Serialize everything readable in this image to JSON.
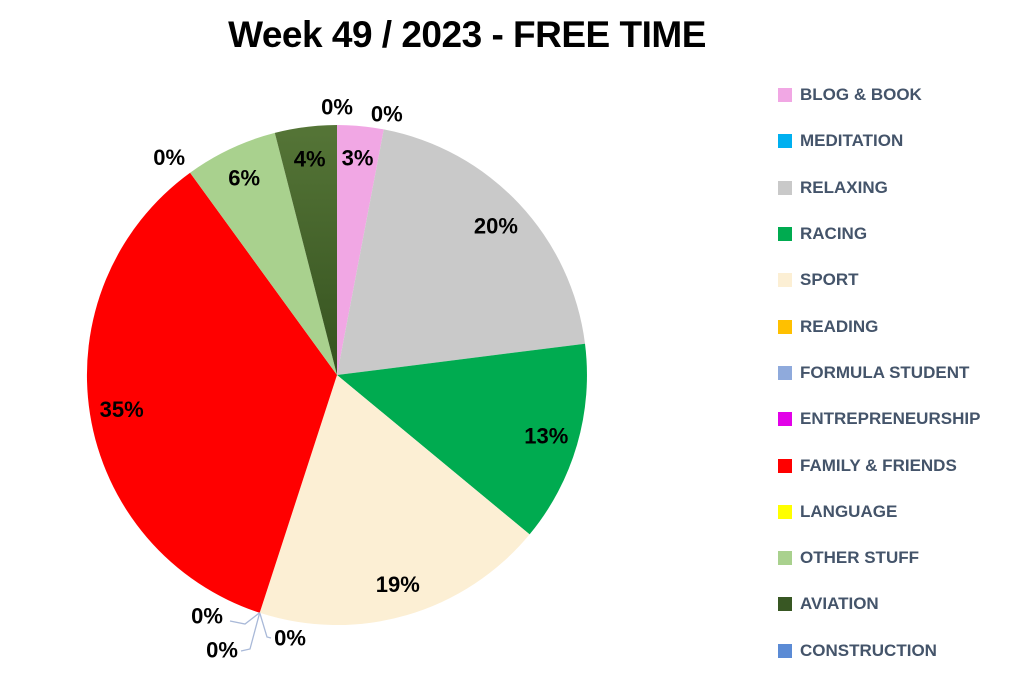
{
  "title": "Week 49 / 2023 - FREE TIME",
  "chart_data": {
    "type": "pie",
    "title": "Week 49 / 2023 - FREE TIME",
    "value_unit": "percent",
    "total": 100,
    "start_angle_deg": 0,
    "direction": "clockwise",
    "legend_position": "right",
    "data_labels_shown": true,
    "series": [
      {
        "label": "BLOG & BOOK",
        "value": 3,
        "color": "#F1A7E4"
      },
      {
        "label": "MEDITATION",
        "value": 0,
        "color": "#00B0F0"
      },
      {
        "label": "RELAXING",
        "value": 20,
        "color": "#C9C9C9"
      },
      {
        "label": "RACING",
        "value": 13,
        "color": "#00AB50"
      },
      {
        "label": "SPORT",
        "value": 19,
        "color": "#FCEFD4"
      },
      {
        "label": "READING",
        "value": 0,
        "color": "#FFC000"
      },
      {
        "label": "FORMULA STUDENT",
        "value": 0,
        "color": "#8FAADC"
      },
      {
        "label": "ENTREPRENEURSHIP",
        "value": 0,
        "color": "#E202E8"
      },
      {
        "label": "FAMILY & FRIENDS",
        "value": 35,
        "color": "#FF0000"
      },
      {
        "label": "LANGUAGE",
        "value": 0,
        "color": "#FFFF00"
      },
      {
        "label": "OTHER STUFF",
        "value": 6,
        "color": "#A9D18E"
      },
      {
        "label": "AVIATION",
        "value": 4,
        "color": "#385723",
        "slice_gradient": [
          "#557537",
          "#35521F"
        ]
      },
      {
        "label": "CONSTRUCTION",
        "value": 0,
        "color": "#5B8BD5"
      }
    ]
  },
  "styles": {
    "background": "#FFFFFF",
    "title_color": "#000000",
    "data_label_color": "#000000",
    "legend_text_color": "#44546A",
    "leader_line_color": "#A9B9D8"
  }
}
